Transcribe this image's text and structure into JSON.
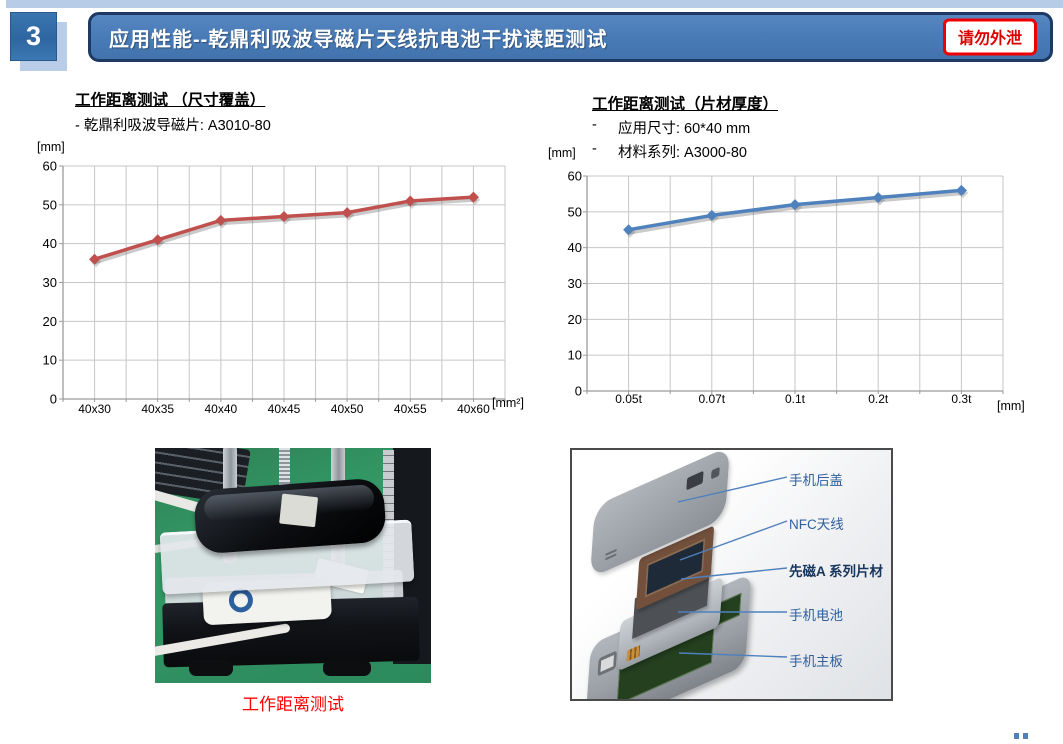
{
  "header": {
    "slide_number": "3",
    "title": "应用性能--乾鼎利吸波导磁片天线抗电池干扰读距测试",
    "confidential_badge": "请勿外泄"
  },
  "left_section": {
    "title": "工作距离测试 （尺寸覆盖）",
    "subtitle": "- 乾鼎利吸波导磁片: A3010-80",
    "photo_caption": "工作距离测试"
  },
  "right_section": {
    "title": "工作距离测试（片材厚度）",
    "bullets": [
      {
        "marker": "-",
        "text": "应用尺寸: 60*40 mm"
      },
      {
        "marker": "-",
        "text": "材料系列: A3000-80"
      }
    ],
    "diagram_labels": [
      {
        "text": "手机后盖"
      },
      {
        "text": "NFC天线"
      },
      {
        "text": "先磁A 系列片材"
      },
      {
        "text": "手机电池"
      },
      {
        "text": "手机主板"
      }
    ]
  },
  "chart_data": [
    {
      "type": "line",
      "title": "工作距离测试 （尺寸覆盖）",
      "series_label": "乾鼎利吸波导磁片 A3010-80",
      "categories": [
        "40x30",
        "40x35",
        "40x40",
        "40x45",
        "40x50",
        "40x55",
        "40x60"
      ],
      "values": [
        36,
        41,
        46,
        47,
        48,
        51,
        52
      ],
      "ylabel": "[mm]",
      "xlabel": "[mm²]",
      "ylim": [
        0,
        60
      ],
      "ytick_step": 10,
      "grid": true,
      "legend": false,
      "line_color": "#C0504D",
      "marker": "diamond"
    },
    {
      "type": "line",
      "title": "工作距离测试（片材厚度）",
      "series_label": "A3000-80 (60*40 mm)",
      "categories": [
        "0.05t",
        "0.07t",
        "0.1t",
        "0.2t",
        "0.3t"
      ],
      "values": [
        45,
        49,
        52,
        54,
        56
      ],
      "ylabel": "[mm]",
      "xlabel": "[mm]",
      "ylim": [
        0,
        60
      ],
      "ytick_step": 10,
      "grid": true,
      "legend": false,
      "line_color": "#4F81BD",
      "marker": "diamond"
    }
  ],
  "colors": {
    "accent_red": "#C0504D",
    "accent_blue": "#4F81BD",
    "header_fill": "#4A7CB8",
    "header_border": "#1E3A64",
    "badge_red": "#EE0000",
    "caption_red": "#FF0000",
    "topbar_blue": "#B7CCE7",
    "diagram_label_blue": "#2F5F9E",
    "grid_gray": "#C6C6C6"
  }
}
